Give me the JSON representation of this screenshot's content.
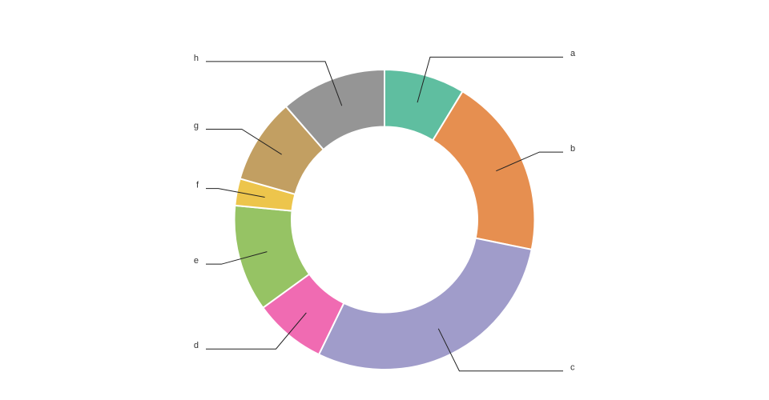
{
  "chart_data": {
    "type": "donut",
    "categories": [
      "a",
      "b",
      "c",
      "d",
      "e",
      "f",
      "g",
      "h"
    ],
    "values": [
      8.7,
      19.5,
      29,
      7.8,
      11.5,
      2.9,
      9.2,
      11.4
    ],
    "colors": [
      "#5fbea0",
      "#e68f50",
      "#a09cca",
      "#f06bb2",
      "#96c364",
      "#edc54c",
      "#c29f62",
      "#959595"
    ]
  }
}
